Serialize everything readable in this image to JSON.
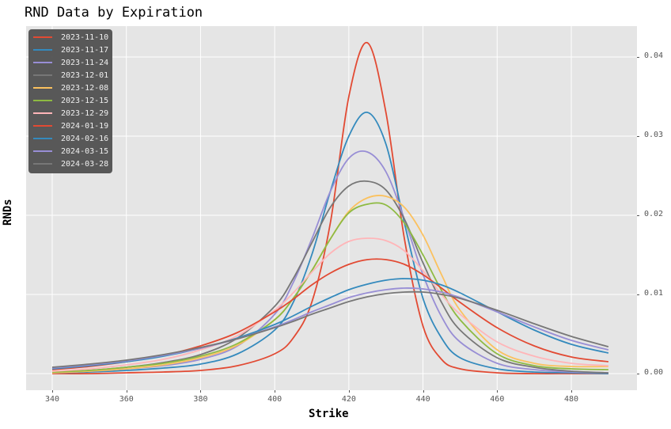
{
  "title": "RND Data by Expiration",
  "chart_data": {
    "type": "line",
    "title": "RND Data by Expiration",
    "xlabel": "Strike",
    "ylabel": "RNDs",
    "xlim": [
      332.8,
      497.2
    ],
    "ylim": [
      -0.002,
      0.044
    ],
    "xticks": [
      340,
      360,
      380,
      400,
      420,
      440,
      460,
      480
    ],
    "yticks": [
      0.0,
      0.01,
      0.02,
      0.03,
      0.04
    ],
    "ytick_labels": [
      "0.00",
      "0.01",
      "0.02",
      "0.03",
      "0.04"
    ],
    "yaxis_position": "right",
    "grid": true,
    "legend_position": "upper left",
    "x": [
      340,
      350,
      360,
      370,
      380,
      390,
      400,
      405,
      410,
      415,
      420,
      425,
      430,
      435,
      440,
      445,
      450,
      460,
      470,
      480,
      490
    ],
    "series": [
      {
        "name": "2023-11-10",
        "color": "#E24A33",
        "values": [
          0.0,
          0.0,
          0.0001,
          0.0002,
          0.0004,
          0.001,
          0.0025,
          0.0045,
          0.009,
          0.019,
          0.035,
          0.0418,
          0.033,
          0.017,
          0.006,
          0.0018,
          0.0006,
          0.0001,
          0.0,
          0.0,
          0.0
        ]
      },
      {
        "name": "2023-11-17",
        "color": "#348ABD",
        "values": [
          0.0001,
          0.0002,
          0.0004,
          0.0007,
          0.0012,
          0.0025,
          0.0055,
          0.009,
          0.015,
          0.023,
          0.03,
          0.033,
          0.029,
          0.019,
          0.0095,
          0.0045,
          0.002,
          0.0006,
          0.0002,
          0.0001,
          0.0
        ]
      },
      {
        "name": "2023-11-24",
        "color": "#988ED5",
        "values": [
          0.0001,
          0.0003,
          0.0006,
          0.001,
          0.0018,
          0.0035,
          0.0075,
          0.0115,
          0.017,
          0.023,
          0.0272,
          0.028,
          0.0255,
          0.0195,
          0.0125,
          0.0072,
          0.004,
          0.0013,
          0.0005,
          0.0002,
          0.0001
        ]
      },
      {
        "name": "2023-12-01",
        "color": "#777777",
        "values": [
          0.0002,
          0.0004,
          0.0008,
          0.0014,
          0.0024,
          0.0045,
          0.0085,
          0.012,
          0.0165,
          0.021,
          0.0237,
          0.0243,
          0.0232,
          0.0195,
          0.014,
          0.009,
          0.0055,
          0.002,
          0.0008,
          0.0003,
          0.0001
        ]
      },
      {
        "name": "2023-12-08",
        "color": "#FBC15E",
        "values": [
          0.0001,
          0.0003,
          0.0006,
          0.0011,
          0.002,
          0.0036,
          0.0068,
          0.0095,
          0.013,
          0.017,
          0.0205,
          0.0222,
          0.0224,
          0.021,
          0.0175,
          0.0125,
          0.008,
          0.003,
          0.0013,
          0.0009,
          0.0009
        ]
      },
      {
        "name": "2023-12-15",
        "color": "#8EBA42",
        "values": [
          0.0002,
          0.0004,
          0.0008,
          0.0013,
          0.0022,
          0.0038,
          0.0068,
          0.0095,
          0.013,
          0.017,
          0.0203,
          0.0214,
          0.0213,
          0.019,
          0.015,
          0.0105,
          0.0068,
          0.0025,
          0.001,
          0.0006,
          0.0005
        ]
      },
      {
        "name": "2023-12-29",
        "color": "#FFB5B8",
        "values": [
          0.0003,
          0.0006,
          0.0011,
          0.0018,
          0.003,
          0.0048,
          0.008,
          0.0102,
          0.0128,
          0.0152,
          0.0167,
          0.0171,
          0.0168,
          0.0155,
          0.013,
          0.01,
          0.0075,
          0.004,
          0.0022,
          0.0013,
          0.001
        ]
      },
      {
        "name": "2024-01-19",
        "color": "#E24A33",
        "values": [
          0.0005,
          0.0009,
          0.0015,
          0.0023,
          0.0035,
          0.0052,
          0.0078,
          0.0094,
          0.0112,
          0.0127,
          0.0138,
          0.0144,
          0.0144,
          0.0138,
          0.0125,
          0.0108,
          0.009,
          0.0058,
          0.0035,
          0.0021,
          0.0015
        ]
      },
      {
        "name": "2024-02-16",
        "color": "#348ABD",
        "values": [
          0.0006,
          0.001,
          0.0015,
          0.0022,
          0.0032,
          0.0045,
          0.0062,
          0.0073,
          0.0085,
          0.0096,
          0.0106,
          0.0113,
          0.0118,
          0.012,
          0.0118,
          0.0112,
          0.0102,
          0.0078,
          0.0055,
          0.0037,
          0.0026
        ]
      },
      {
        "name": "2024-03-15",
        "color": "#988ED5",
        "values": [
          0.0007,
          0.0011,
          0.0016,
          0.0023,
          0.0032,
          0.0044,
          0.0059,
          0.0068,
          0.0078,
          0.0087,
          0.0096,
          0.0102,
          0.0106,
          0.0108,
          0.0107,
          0.0103,
          0.0096,
          0.0078,
          0.0059,
          0.0042,
          0.003
        ]
      },
      {
        "name": "2024-03-28",
        "color": "#777777",
        "values": [
          0.0008,
          0.0012,
          0.0017,
          0.0024,
          0.0033,
          0.0044,
          0.0058,
          0.0066,
          0.0075,
          0.0083,
          0.0091,
          0.0097,
          0.0101,
          0.0103,
          0.0103,
          0.01,
          0.0095,
          0.008,
          0.0063,
          0.0047,
          0.0034
        ]
      }
    ]
  },
  "legend": {
    "items": [
      {
        "label": "2023-11-10",
        "color": "#E24A33"
      },
      {
        "label": "2023-11-17",
        "color": "#348ABD"
      },
      {
        "label": "2023-11-24",
        "color": "#988ED5"
      },
      {
        "label": "2023-12-01",
        "color": "#777777"
      },
      {
        "label": "2023-12-08",
        "color": "#FBC15E"
      },
      {
        "label": "2023-12-15",
        "color": "#8EBA42"
      },
      {
        "label": "2023-12-29",
        "color": "#FFB5B8"
      },
      {
        "label": "2024-01-19",
        "color": "#E24A33"
      },
      {
        "label": "2024-02-16",
        "color": "#348ABD"
      },
      {
        "label": "2024-03-15",
        "color": "#988ED5"
      },
      {
        "label": "2024-03-28",
        "color": "#777777"
      }
    ]
  },
  "axes": {
    "xlabel": "Strike",
    "ylabel": "RNDs",
    "xticks": [
      "340",
      "360",
      "380",
      "400",
      "420",
      "440",
      "460",
      "480"
    ],
    "yticks": [
      "0.04",
      "0.03",
      "0.02",
      "0.01",
      "0.00"
    ]
  },
  "colors": {
    "plot_background": "#E5E5E5",
    "grid": "#FFFFFF",
    "legend_background": "#505050"
  }
}
